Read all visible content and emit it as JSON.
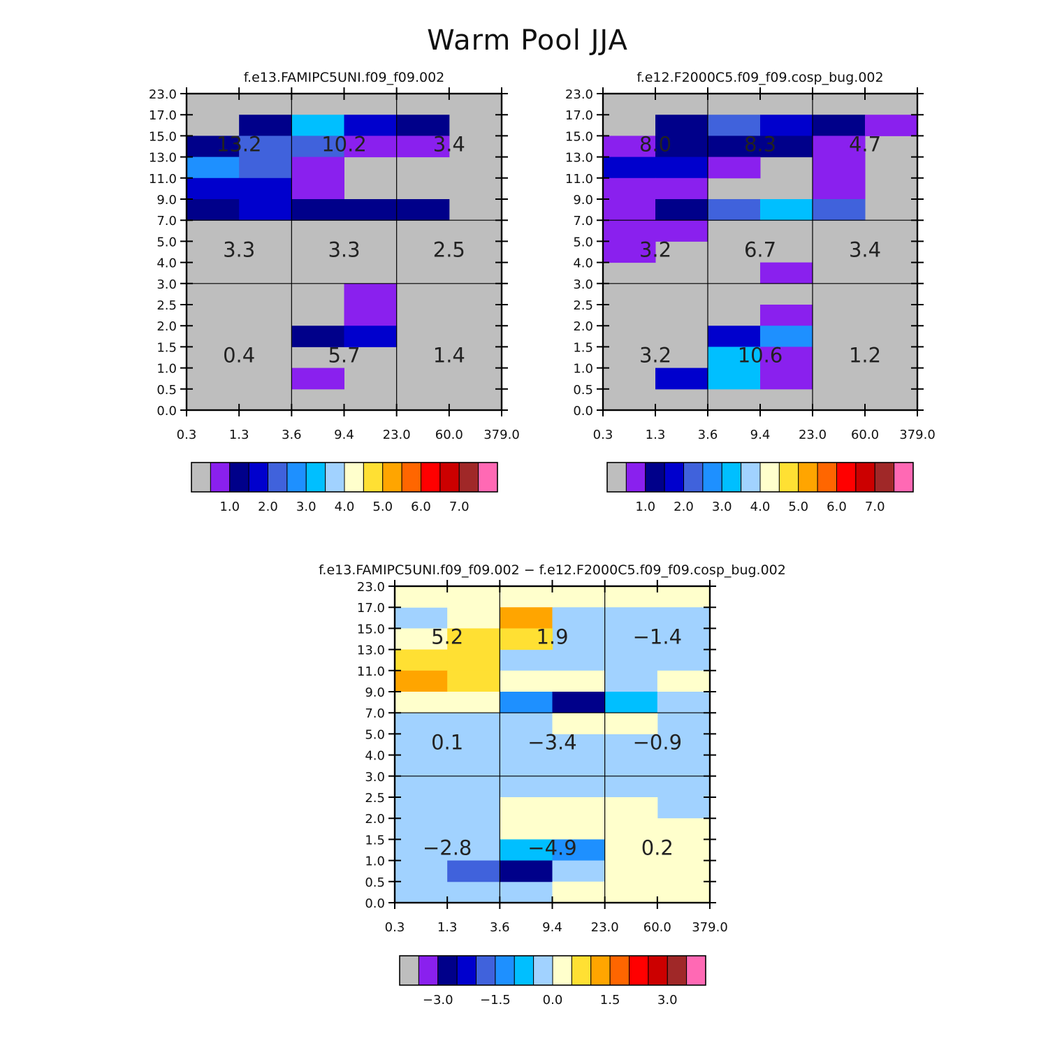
{
  "figure": {
    "title": "Warm Pool JJA"
  },
  "colors": {
    "gray": "#bebebe",
    "purple": "#8a20ee",
    "navy": "#00008a",
    "blue": "#0000cd",
    "royal": "#4062dc",
    "dodger": "#1e90ff",
    "sky": "#00bfff",
    "light": "#a1d2ff",
    "cream": "#ffffcc",
    "yellow": "#ffe033",
    "gold": "#ffa500",
    "orange": "#ff6600",
    "red": "#ff0000",
    "crimson": "#cc0000",
    "brown": "#a02828",
    "pink": "#ff69b4"
  },
  "chart_data": [
    {
      "type": "heatmap",
      "title": "f.e13.FAMIPC5UNI.f09_f09.002",
      "x_tick_labels": [
        "0.3",
        "1.3",
        "3.6",
        "9.4",
        "23.0",
        "60.0",
        "379.0"
      ],
      "y_tick_labels": [
        "0.0",
        "0.5",
        "1.0",
        "1.5",
        "2.0",
        "2.5",
        "3.0",
        "4.0",
        "5.0",
        "7.0",
        "9.0",
        "11.0",
        "13.0",
        "15.0",
        "17.0",
        "23.0"
      ],
      "background": "gray",
      "cells": [
        [
          0,
          13,
          "gray"
        ],
        [
          1,
          13,
          "navy"
        ],
        [
          2,
          13,
          "sky"
        ],
        [
          3,
          13,
          "blue"
        ],
        [
          4,
          13,
          "navy"
        ],
        [
          0,
          12,
          "navy"
        ],
        [
          1,
          12,
          "royal"
        ],
        [
          2,
          12,
          "royal"
        ],
        [
          3,
          12,
          "purple"
        ],
        [
          4,
          12,
          "purple"
        ],
        [
          0,
          11,
          "dodger"
        ],
        [
          1,
          11,
          "royal"
        ],
        [
          2,
          11,
          "purple"
        ],
        [
          0,
          10,
          "blue"
        ],
        [
          1,
          10,
          "blue"
        ],
        [
          2,
          10,
          "purple"
        ],
        [
          0,
          9,
          "navy"
        ],
        [
          1,
          9,
          "blue"
        ],
        [
          2,
          9,
          "navy"
        ],
        [
          3,
          9,
          "navy"
        ],
        [
          4,
          9,
          "navy"
        ],
        [
          3,
          5,
          "purple"
        ],
        [
          3,
          4,
          "purple"
        ],
        [
          2,
          3,
          "navy"
        ],
        [
          3,
          3,
          "blue"
        ],
        [
          2,
          1,
          "purple"
        ]
      ],
      "regions": [
        {
          "x": 1,
          "y": 12.6,
          "text": "13.2"
        },
        {
          "x": 3,
          "y": 12.6,
          "text": "10.2"
        },
        {
          "x": 5,
          "y": 12.6,
          "text": "3.4"
        },
        {
          "x": 1,
          "y": 7.6,
          "text": "3.3"
        },
        {
          "x": 3,
          "y": 7.6,
          "text": "3.3"
        },
        {
          "x": 5,
          "y": 7.6,
          "text": "2.5"
        },
        {
          "x": 1,
          "y": 2.6,
          "text": "0.4"
        },
        {
          "x": 3,
          "y": 2.6,
          "text": "5.7"
        },
        {
          "x": 5,
          "y": 2.6,
          "text": "1.4"
        }
      ],
      "colorbar": {
        "colors": [
          "gray",
          "purple",
          "navy",
          "blue",
          "royal",
          "dodger",
          "sky",
          "light",
          "cream",
          "yellow",
          "gold",
          "orange",
          "red",
          "crimson",
          "brown",
          "pink"
        ],
        "labels": [
          {
            "after": 2,
            "text": "1.0"
          },
          {
            "after": 4,
            "text": "2.0"
          },
          {
            "after": 6,
            "text": "3.0"
          },
          {
            "after": 8,
            "text": "4.0"
          },
          {
            "after": 10,
            "text": "5.0"
          },
          {
            "after": 12,
            "text": "6.0"
          },
          {
            "after": 14,
            "text": "7.0"
          }
        ]
      }
    },
    {
      "type": "heatmap",
      "title": "f.e12.F2000C5.f09_f09.cosp_bug.002",
      "x_tick_labels": [
        "0.3",
        "1.3",
        "3.6",
        "9.4",
        "23.0",
        "60.0",
        "379.0"
      ],
      "y_tick_labels": [
        "0.0",
        "0.5",
        "1.0",
        "1.5",
        "2.0",
        "2.5",
        "3.0",
        "4.0",
        "5.0",
        "7.0",
        "9.0",
        "11.0",
        "13.0",
        "15.0",
        "17.0",
        "23.0"
      ],
      "background": "gray",
      "cells": [
        [
          1,
          13,
          "navy"
        ],
        [
          2,
          13,
          "royal"
        ],
        [
          3,
          13,
          "blue"
        ],
        [
          4,
          13,
          "navy"
        ],
        [
          5,
          13,
          "purple"
        ],
        [
          0,
          12,
          "purple"
        ],
        [
          1,
          12,
          "navy"
        ],
        [
          2,
          12,
          "navy"
        ],
        [
          3,
          12,
          "navy"
        ],
        [
          4,
          12,
          "purple"
        ],
        [
          0,
          11,
          "blue"
        ],
        [
          1,
          11,
          "blue"
        ],
        [
          2,
          11,
          "purple"
        ],
        [
          4,
          11,
          "purple"
        ],
        [
          0,
          10,
          "purple"
        ],
        [
          1,
          10,
          "purple"
        ],
        [
          4,
          10,
          "purple"
        ],
        [
          0,
          9,
          "purple"
        ],
        [
          1,
          9,
          "navy"
        ],
        [
          2,
          9,
          "royal"
        ],
        [
          3,
          9,
          "sky"
        ],
        [
          4,
          9,
          "royal"
        ],
        [
          0,
          8,
          "purple"
        ],
        [
          1,
          8,
          "purple"
        ],
        [
          0,
          7,
          "purple"
        ],
        [
          3,
          6,
          "purple"
        ],
        [
          3,
          4,
          "purple"
        ],
        [
          2,
          3,
          "blue"
        ],
        [
          3,
          3,
          "dodger"
        ],
        [
          2,
          2,
          "sky"
        ],
        [
          3,
          2,
          "purple"
        ],
        [
          1,
          1,
          "blue"
        ],
        [
          2,
          1,
          "sky"
        ],
        [
          3,
          1,
          "purple"
        ]
      ],
      "regions": [
        {
          "x": 1,
          "y": 12.6,
          "text": "8.0"
        },
        {
          "x": 3,
          "y": 12.6,
          "text": "8.3"
        },
        {
          "x": 5,
          "y": 12.6,
          "text": "4.7"
        },
        {
          "x": 1,
          "y": 7.6,
          "text": "3.2"
        },
        {
          "x": 3,
          "y": 7.6,
          "text": "6.7"
        },
        {
          "x": 5,
          "y": 7.6,
          "text": "3.4"
        },
        {
          "x": 1,
          "y": 2.6,
          "text": "3.2"
        },
        {
          "x": 3,
          "y": 2.6,
          "text": "10.6"
        },
        {
          "x": 5,
          "y": 2.6,
          "text": "1.2"
        }
      ],
      "colorbar": {
        "colors": [
          "gray",
          "purple",
          "navy",
          "blue",
          "royal",
          "dodger",
          "sky",
          "light",
          "cream",
          "yellow",
          "gold",
          "orange",
          "red",
          "crimson",
          "brown",
          "pink"
        ],
        "labels": [
          {
            "after": 2,
            "text": "1.0"
          },
          {
            "after": 4,
            "text": "2.0"
          },
          {
            "after": 6,
            "text": "3.0"
          },
          {
            "after": 8,
            "text": "4.0"
          },
          {
            "after": 10,
            "text": "5.0"
          },
          {
            "after": 12,
            "text": "6.0"
          },
          {
            "after": 14,
            "text": "7.0"
          }
        ]
      }
    },
    {
      "type": "heatmap",
      "title": "f.e13.FAMIPC5UNI.f09_f09.002 − f.e12.F2000C5.f09_f09.cosp_bug.002",
      "x_tick_labels": [
        "0.3",
        "1.3",
        "3.6",
        "9.4",
        "23.0",
        "60.0",
        "379.0"
      ],
      "y_tick_labels": [
        "0.0",
        "0.5",
        "1.0",
        "1.5",
        "2.0",
        "2.5",
        "3.0",
        "4.0",
        "5.0",
        "7.0",
        "9.0",
        "11.0",
        "13.0",
        "15.0",
        "17.0",
        "23.0"
      ],
      "background": "light",
      "cells": [
        [
          0,
          14,
          "cream"
        ],
        [
          1,
          14,
          "cream"
        ],
        [
          2,
          14,
          "cream"
        ],
        [
          3,
          14,
          "cream"
        ],
        [
          4,
          14,
          "cream"
        ],
        [
          5,
          14,
          "cream"
        ],
        [
          1,
          13,
          "cream"
        ],
        [
          2,
          13,
          "gold"
        ],
        [
          3,
          13,
          "light"
        ],
        [
          4,
          13,
          "light"
        ],
        [
          5,
          13,
          "light"
        ],
        [
          0,
          12,
          "cream"
        ],
        [
          1,
          12,
          "yellow"
        ],
        [
          2,
          12,
          "yellow"
        ],
        [
          0,
          11,
          "yellow"
        ],
        [
          1,
          11,
          "yellow"
        ],
        [
          0,
          10,
          "gold"
        ],
        [
          1,
          10,
          "yellow"
        ],
        [
          2,
          10,
          "cream"
        ],
        [
          3,
          10,
          "cream"
        ],
        [
          5,
          10,
          "cream"
        ],
        [
          0,
          9,
          "cream"
        ],
        [
          1,
          9,
          "cream"
        ],
        [
          2,
          9,
          "dodger"
        ],
        [
          3,
          9,
          "navy"
        ],
        [
          4,
          9,
          "sky"
        ],
        [
          5,
          9,
          "light"
        ],
        [
          3,
          8,
          "cream"
        ],
        [
          4,
          8,
          "cream"
        ],
        [
          2,
          5,
          "light"
        ],
        [
          3,
          5,
          "light"
        ],
        [
          2,
          4,
          "cream"
        ],
        [
          3,
          4,
          "cream"
        ],
        [
          4,
          4,
          "cream"
        ],
        [
          2,
          3,
          "cream"
        ],
        [
          3,
          3,
          "cream"
        ],
        [
          4,
          3,
          "cream"
        ],
        [
          5,
          3,
          "cream"
        ],
        [
          2,
          2,
          "sky"
        ],
        [
          3,
          2,
          "dodger"
        ],
        [
          4,
          2,
          "cream"
        ],
        [
          5,
          2,
          "cream"
        ],
        [
          1,
          1,
          "royal"
        ],
        [
          2,
          1,
          "navy"
        ],
        [
          3,
          1,
          "light"
        ],
        [
          4,
          1,
          "cream"
        ],
        [
          5,
          1,
          "cream"
        ],
        [
          3,
          0,
          "cream"
        ],
        [
          4,
          0,
          "cream"
        ],
        [
          5,
          0,
          "cream"
        ]
      ],
      "regions": [
        {
          "x": 1,
          "y": 12.6,
          "text": "5.2"
        },
        {
          "x": 3,
          "y": 12.6,
          "text": "1.9"
        },
        {
          "x": 5,
          "y": 12.6,
          "text": "−1.4"
        },
        {
          "x": 1,
          "y": 7.6,
          "text": "0.1"
        },
        {
          "x": 3,
          "y": 7.6,
          "text": "−3.4"
        },
        {
          "x": 5,
          "y": 7.6,
          "text": "−0.9"
        },
        {
          "x": 1,
          "y": 2.6,
          "text": "−2.8"
        },
        {
          "x": 3,
          "y": 2.6,
          "text": "−4.9"
        },
        {
          "x": 5,
          "y": 2.6,
          "text": "0.2"
        }
      ],
      "colorbar": {
        "colors": [
          "gray",
          "purple",
          "navy",
          "blue",
          "royal",
          "dodger",
          "sky",
          "light",
          "cream",
          "yellow",
          "gold",
          "orange",
          "red",
          "crimson",
          "brown",
          "pink"
        ],
        "labels": [
          {
            "after": 2,
            "text": "−3.0"
          },
          {
            "after": 5,
            "text": "−1.5"
          },
          {
            "after": 8,
            "text": "0.0"
          },
          {
            "after": 11,
            "text": "1.5"
          },
          {
            "after": 14,
            "text": "3.0"
          }
        ]
      }
    }
  ]
}
